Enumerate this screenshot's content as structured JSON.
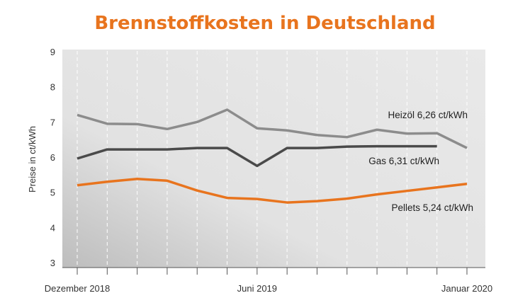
{
  "chart_data": {
    "type": "line",
    "title": "Brennstoffkosten in Deutschland",
    "ylabel": "Preise in ct/kWh",
    "xlabel": "",
    "ylim": [
      3,
      9
    ],
    "yticks": [
      "3",
      "4",
      "5",
      "6",
      "7",
      "8",
      "9"
    ],
    "x": [
      "2018-12",
      "2019-01",
      "2019-02",
      "2019-03",
      "2019-04",
      "2019-05",
      "2019-06",
      "2019-07",
      "2019-08",
      "2019-09",
      "2019-10",
      "2019-11",
      "2019-12",
      "2020-01"
    ],
    "xtick_labels": [
      {
        "index": 0,
        "label": "Dezember 2018"
      },
      {
        "index": 6,
        "label": "Juni 2019"
      },
      {
        "index": 13,
        "label": "Januar 2020"
      }
    ],
    "grid": "vertical dashed",
    "series": [
      {
        "name": "Heizöl",
        "label": "Heizöl 6,26 ct/kWh",
        "color": "#8c8c8c",
        "values": [
          7.2,
          6.95,
          6.94,
          6.8,
          7.0,
          7.35,
          6.82,
          6.76,
          6.63,
          6.57,
          6.78,
          6.67,
          6.68,
          6.26
        ]
      },
      {
        "name": "Gas",
        "label": "Gas  6,31 ct/kWh",
        "color": "#4a4a4a",
        "values": [
          5.96,
          6.22,
          6.22,
          6.22,
          6.26,
          6.26,
          5.75,
          6.26,
          6.26,
          6.3,
          6.31,
          6.31,
          6.31,
          null
        ]
      },
      {
        "name": "Pellets",
        "label": "Pellets  5,24 ct/kWh",
        "color": "#e8741e",
        "values": [
          5.2,
          5.3,
          5.38,
          5.33,
          5.05,
          4.84,
          4.81,
          4.71,
          4.75,
          4.82,
          4.94,
          5.04,
          5.14,
          5.24
        ]
      }
    ]
  }
}
